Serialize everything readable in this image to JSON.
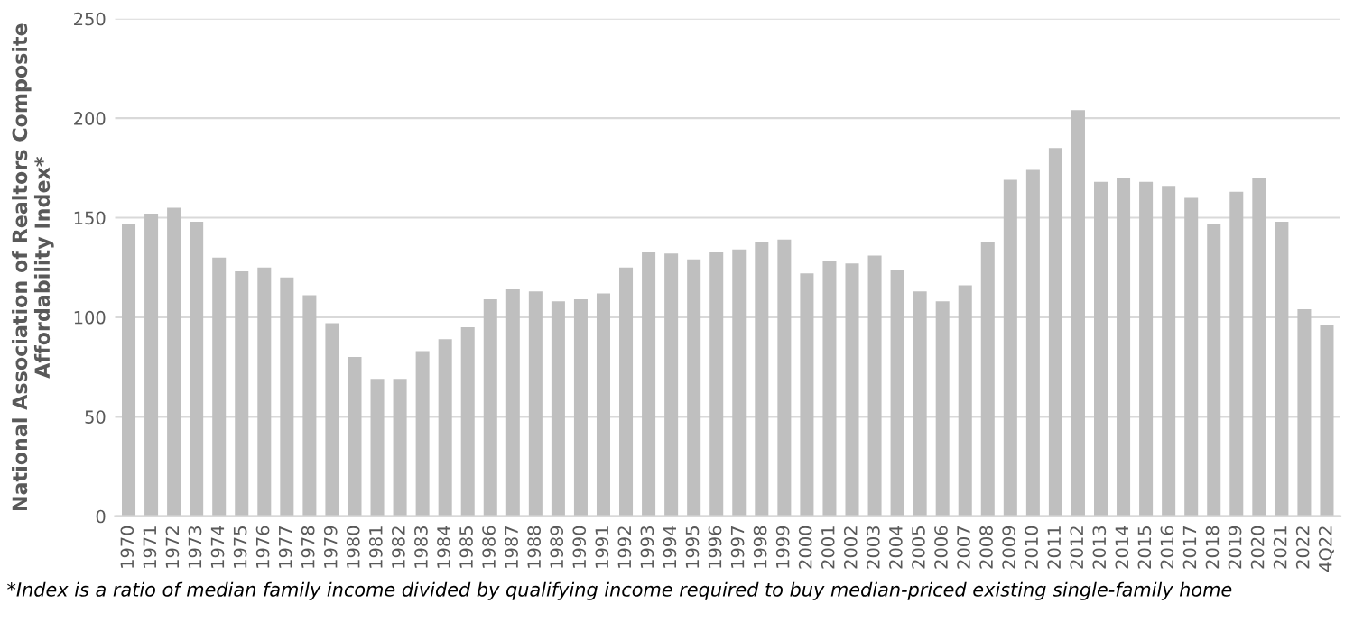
{
  "chart_data": {
    "type": "bar",
    "ylabel": "National Association of Realtors Composite Affordability Index*",
    "annotations": [
      "*Index is a ratio of median family income divided by qualifying income required to buy median-priced existing single-family home"
    ],
    "categories": [
      "1970",
      "1971",
      "1972",
      "1973",
      "1974",
      "1975",
      "1976",
      "1977",
      "1978",
      "1979",
      "1980",
      "1981",
      "1982",
      "1983",
      "1984",
      "1985",
      "1986",
      "1987",
      "1988",
      "1989",
      "1990",
      "1991",
      "1992",
      "1993",
      "1994",
      "1995",
      "1996",
      "1997",
      "1998",
      "1999",
      "2000",
      "2001",
      "2002",
      "2003",
      "2004",
      "2005",
      "2006",
      "2007",
      "2008",
      "2009",
      "2010",
      "2011",
      "2012",
      "2013",
      "2014",
      "2015",
      "2016",
      "2017",
      "2018",
      "2019",
      "2020",
      "2021",
      "2022",
      "4Q22"
    ],
    "values": [
      147,
      152,
      155,
      148,
      130,
      123,
      125,
      120,
      111,
      97,
      80,
      69,
      69,
      83,
      89,
      95,
      109,
      114,
      113,
      108,
      109,
      112,
      125,
      133,
      132,
      129,
      133,
      134,
      138,
      139,
      122,
      128,
      127,
      131,
      124,
      113,
      108,
      116,
      138,
      169,
      174,
      185,
      204,
      168,
      170,
      168,
      166,
      160,
      147,
      163,
      170,
      148,
      104,
      96
    ],
    "color": "#bfbfbf",
    "ylim": [
      0,
      250
    ],
    "yticks": [
      0,
      50,
      100,
      150,
      200,
      250
    ],
    "grid": "y"
  }
}
